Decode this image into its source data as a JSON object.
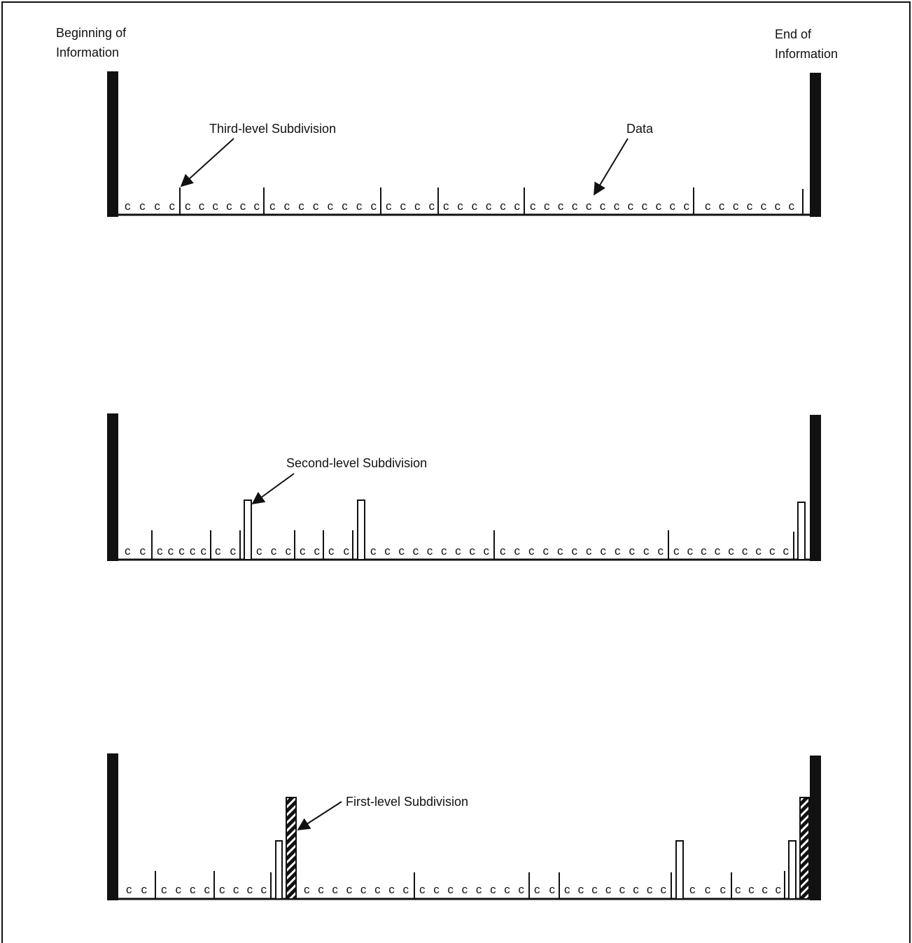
{
  "labels": {
    "beginning_line1": "Beginning of",
    "beginning_line2": "Information",
    "end_line1": "End of",
    "end_line2": "Information",
    "third_level": "Third-level Subdivision",
    "data": "Data",
    "second_level": "Second-level Subdivision",
    "first_level": "First-level Subdivision"
  },
  "colors": {
    "ink": "#111111",
    "paper": "#ffffff"
  },
  "rows": [
    {
      "id": "row-third-level",
      "segments": [
        "cccc",
        "cccccc",
        "cccccccc",
        "cccc",
        "cccccc",
        "cccccccccccc",
        "ccccccc"
      ]
    },
    {
      "id": "row-second-level",
      "segments": [
        "cc",
        "ccccc",
        "cc",
        "ccc",
        "cc",
        "cc",
        "ccccccccc",
        "cccccccccccc",
        "ccccccccc"
      ]
    },
    {
      "id": "row-first-level",
      "segments": [
        "cc",
        "cccc",
        "cccc",
        "cccccccc",
        "cccccccc",
        "cc",
        "cccccccc",
        "ccc",
        "cccc"
      ]
    }
  ]
}
